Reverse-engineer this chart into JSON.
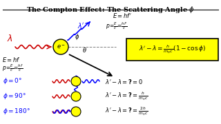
{
  "title": "The Compton Effect: The Scattering Angle ϕ",
  "bg_color": "#ffffff",
  "blue": "#0000ff",
  "red": "#cc0000",
  "black": "#000000",
  "yellow_box_color": "#ffff00",
  "electron_color": "#ffff00"
}
